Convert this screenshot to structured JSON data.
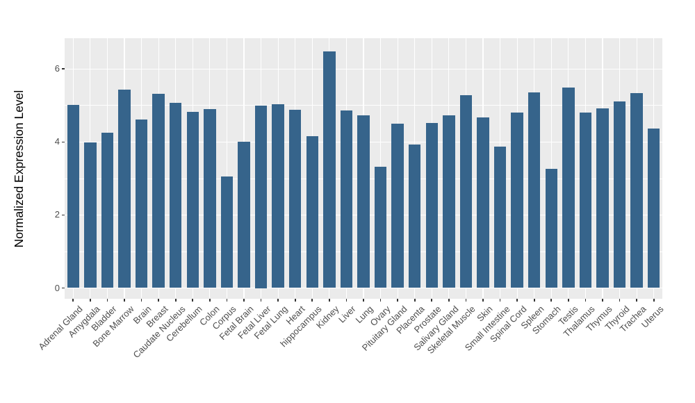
{
  "chart_data": {
    "type": "bar",
    "title": "",
    "xlabel": "",
    "ylabel": "Normalized Expression Level",
    "categories": [
      "Adrenal Gland",
      "Amygdala",
      "Bladder",
      "Bone Marrow",
      "Brain",
      "Breast",
      "Caudate Nucleus",
      "Cerebellum",
      "Colon",
      "Corpus",
      "Fetal Brain",
      "Fetal Liver",
      "Fetal Lung",
      "Heart",
      "hippocampus",
      "Kidney",
      "Liver",
      "Lung",
      "Ovary",
      "Pituitary Gland",
      "Placenta",
      "Prostate",
      "Salivary Gland",
      "Skeletal Muscle",
      "Skin",
      "Small Intestine",
      "Spinal Cord",
      "Spleen",
      "Stomach",
      "Testis",
      "Thalamus",
      "Thymus",
      "Thyroid",
      "Trachea",
      "Uterus"
    ],
    "values": [
      5.01,
      3.98,
      4.26,
      5.43,
      4.61,
      5.32,
      5.07,
      4.83,
      4.9,
      3.06,
      4.01,
      5.0,
      5.04,
      4.89,
      4.16,
      6.48,
      4.87,
      4.73,
      3.33,
      4.5,
      3.93,
      4.52,
      4.73,
      5.29,
      4.67,
      3.87,
      4.8,
      5.35,
      3.26,
      5.49,
      4.81,
      4.91,
      5.1,
      5.34,
      4.36
    ],
    "ylim": [
      -0.33,
      6.84
    ],
    "yticks": [
      0,
      2,
      4,
      6
    ],
    "yticks_minor": [
      1,
      3,
      5
    ],
    "grid": "on",
    "legend": "none",
    "bar_color": "#36648B",
    "panel_background": "#EBEBEB",
    "gridline_color": "#FFFFFF",
    "tick_mark_color": "#333333",
    "tick_label_color": "#4D4D4D",
    "axis_title_color": "#000000"
  }
}
